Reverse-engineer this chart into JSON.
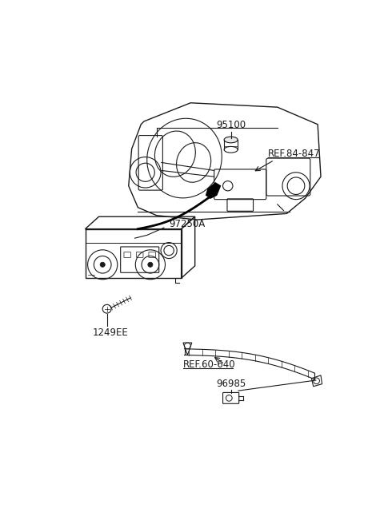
{
  "bg_color": "#ffffff",
  "line_color": "#1a1a1a",
  "label_color": "#1a1a1a",
  "figsize": [
    4.8,
    6.56
  ],
  "dpi": 100,
  "label_95100": "95100",
  "label_ref84": "REF.84-847",
  "label_97250A": "97250A",
  "label_1249EE": "1249EE",
  "label_ref60": "REF.60-640",
  "label_96985": "96985"
}
